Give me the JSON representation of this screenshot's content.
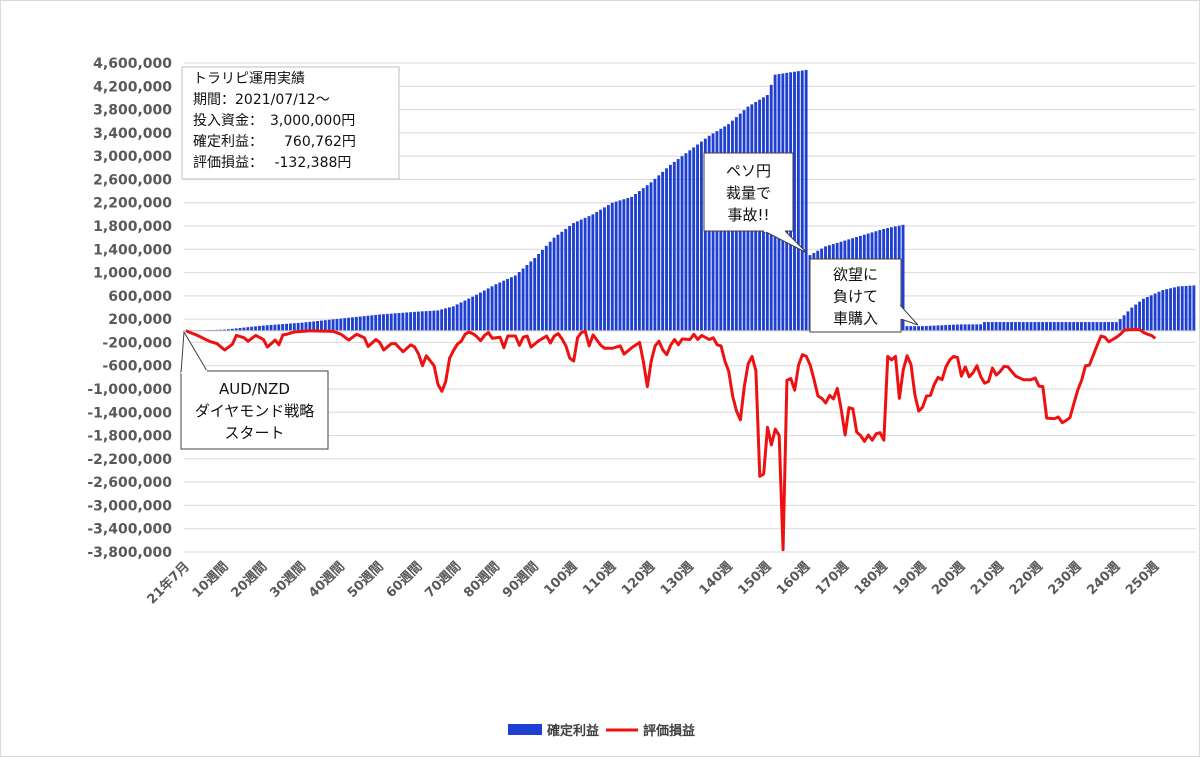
{
  "chart_data": {
    "type": "bar",
    "y_ticks": [
      "4,600,000",
      "4,200,000",
      "3,800,000",
      "3,400,000",
      "3,000,000",
      "2,600,000",
      "2,200,000",
      "1,800,000",
      "1,400,000",
      "1,000,000",
      "600,000",
      "200,000",
      "-200,000",
      "-600,000",
      "-1,000,000",
      "-1,400,000",
      "-1,800,000",
      "-2,200,000",
      "-2,600,000",
      "-3,000,000",
      "-3,400,000",
      "-3,800,000"
    ],
    "ylim": [
      -3800000,
      4600000
    ],
    "grid": true,
    "x_ticks": [
      "21年7月",
      "10週間",
      "20週間",
      "30週間",
      "40週間",
      "50週間",
      "60週間",
      "70週間",
      "80週間",
      "90週間",
      "100週",
      "110週",
      "120週",
      "130週",
      "140週",
      "150週",
      "160週",
      "170週",
      "180週",
      "190週",
      "200週",
      "210週",
      "220週",
      "230週",
      "240週",
      "250週"
    ],
    "x_count": 261,
    "legend": {
      "position": "bottom",
      "items": [
        {
          "name": "確定利益",
          "color": "#1f3fd1"
        },
        {
          "name": "評価損益",
          "color": "#ee1111"
        }
      ]
    },
    "series": [
      {
        "name": "確定利益",
        "type": "bar",
        "color": "#1f3fd1",
        "points": [
          [
            0,
            0
          ],
          [
            10,
            20000
          ],
          [
            20,
            90000
          ],
          [
            30,
            140000
          ],
          [
            40,
            210000
          ],
          [
            50,
            280000
          ],
          [
            60,
            330000
          ],
          [
            65,
            350000
          ],
          [
            69,
            420000
          ],
          [
            75,
            620000
          ],
          [
            80,
            800000
          ],
          [
            85,
            950000
          ],
          [
            90,
            1250000
          ],
          [
            95,
            1600000
          ],
          [
            100,
            1850000
          ],
          [
            105,
            2000000
          ],
          [
            110,
            2200000
          ],
          [
            115,
            2300000
          ],
          [
            120,
            2550000
          ],
          [
            125,
            2850000
          ],
          [
            130,
            3100000
          ],
          [
            135,
            3350000
          ],
          [
            140,
            3550000
          ],
          [
            145,
            3850000
          ],
          [
            150,
            4050000
          ],
          [
            152,
            4400000
          ],
          [
            160,
            4480000
          ],
          [
            161,
            1300000
          ],
          [
            165,
            1450000
          ],
          [
            170,
            1550000
          ],
          [
            175,
            1650000
          ],
          [
            180,
            1750000
          ],
          [
            185,
            1820000
          ],
          [
            186,
            80000
          ],
          [
            190,
            80000
          ],
          [
            200,
            110000
          ],
          [
            205,
            110000
          ],
          [
            206,
            150000
          ],
          [
            215,
            150000
          ],
          [
            225,
            150000
          ],
          [
            235,
            150000
          ],
          [
            240,
            150000
          ],
          [
            241,
            200000
          ],
          [
            244,
            400000
          ],
          [
            247,
            550000
          ],
          [
            252,
            700000
          ],
          [
            256,
            760762
          ],
          [
            260,
            780000
          ]
        ]
      },
      {
        "name": "評価損益",
        "type": "line",
        "color": "#ee1111",
        "points": [
          [
            0,
            0
          ],
          [
            3,
            -80000
          ],
          [
            6,
            -180000
          ],
          [
            8,
            -220000
          ],
          [
            10,
            -330000
          ],
          [
            12,
            -230000
          ],
          [
            13,
            -80000
          ],
          [
            15,
            -120000
          ],
          [
            16,
            -180000
          ],
          [
            18,
            -80000
          ],
          [
            20,
            -150000
          ],
          [
            21,
            -280000
          ],
          [
            23,
            -160000
          ],
          [
            24,
            -240000
          ],
          [
            25,
            -70000
          ],
          [
            26,
            -60000
          ],
          [
            28,
            -20000
          ],
          [
            32,
            0
          ],
          [
            38,
            -10000
          ],
          [
            40,
            -60000
          ],
          [
            42,
            -160000
          ],
          [
            44,
            -60000
          ],
          [
            46,
            -120000
          ],
          [
            47,
            -270000
          ],
          [
            49,
            -150000
          ],
          [
            50,
            -200000
          ],
          [
            51,
            -330000
          ],
          [
            53,
            -220000
          ],
          [
            54,
            -220000
          ],
          [
            56,
            -360000
          ],
          [
            58,
            -240000
          ],
          [
            59,
            -280000
          ],
          [
            60,
            -400000
          ],
          [
            61,
            -600000
          ],
          [
            62,
            -430000
          ],
          [
            64,
            -600000
          ],
          [
            65,
            -920000
          ],
          [
            66,
            -1040000
          ],
          [
            67,
            -870000
          ],
          [
            68,
            -470000
          ],
          [
            69,
            -340000
          ],
          [
            70,
            -230000
          ],
          [
            71,
            -180000
          ],
          [
            72,
            -60000
          ],
          [
            73,
            -20000
          ],
          [
            74,
            -50000
          ],
          [
            75,
            -100000
          ],
          [
            76,
            -170000
          ],
          [
            77,
            -80000
          ],
          [
            78,
            -30000
          ],
          [
            79,
            -130000
          ],
          [
            81,
            -110000
          ],
          [
            82,
            -290000
          ],
          [
            83,
            -90000
          ],
          [
            85,
            -90000
          ],
          [
            86,
            -250000
          ],
          [
            87,
            -110000
          ],
          [
            88,
            -90000
          ],
          [
            89,
            -280000
          ],
          [
            91,
            -170000
          ],
          [
            93,
            -90000
          ],
          [
            94,
            -210000
          ],
          [
            95,
            -90000
          ],
          [
            96,
            -50000
          ],
          [
            97,
            -140000
          ],
          [
            98,
            -260000
          ],
          [
            99,
            -470000
          ],
          [
            100,
            -520000
          ],
          [
            101,
            -120000
          ],
          [
            102,
            -30000
          ],
          [
            103,
            -10000
          ],
          [
            104,
            -260000
          ],
          [
            105,
            -70000
          ],
          [
            107,
            -250000
          ],
          [
            108,
            -300000
          ],
          [
            110,
            -300000
          ],
          [
            112,
            -260000
          ],
          [
            113,
            -400000
          ],
          [
            115,
            -290000
          ],
          [
            117,
            -200000
          ],
          [
            118,
            -540000
          ],
          [
            119,
            -960000
          ],
          [
            120,
            -520000
          ],
          [
            121,
            -260000
          ],
          [
            122,
            -180000
          ],
          [
            123,
            -330000
          ],
          [
            124,
            -410000
          ],
          [
            125,
            -250000
          ],
          [
            126,
            -150000
          ],
          [
            127,
            -240000
          ],
          [
            128,
            -140000
          ],
          [
            130,
            -150000
          ],
          [
            131,
            -60000
          ],
          [
            132,
            -150000
          ],
          [
            133,
            -80000
          ],
          [
            135,
            -150000
          ],
          [
            136,
            -120000
          ],
          [
            137,
            -240000
          ],
          [
            138,
            -260000
          ],
          [
            139,
            -520000
          ],
          [
            140,
            -700000
          ],
          [
            141,
            -1120000
          ],
          [
            142,
            -1380000
          ],
          [
            143,
            -1530000
          ],
          [
            144,
            -960000
          ],
          [
            145,
            -570000
          ],
          [
            146,
            -440000
          ],
          [
            147,
            -690000
          ],
          [
            148,
            -2500000
          ],
          [
            149,
            -2460000
          ],
          [
            150,
            -1660000
          ],
          [
            151,
            -1960000
          ],
          [
            152,
            -1690000
          ],
          [
            153,
            -1800000
          ],
          [
            154,
            -3760000
          ],
          [
            155,
            -850000
          ],
          [
            156,
            -820000
          ],
          [
            157,
            -1020000
          ],
          [
            158,
            -590000
          ],
          [
            159,
            -410000
          ],
          [
            160,
            -440000
          ],
          [
            161,
            -590000
          ],
          [
            162,
            -840000
          ],
          [
            163,
            -1120000
          ],
          [
            164,
            -1160000
          ],
          [
            165,
            -1240000
          ],
          [
            166,
            -1110000
          ],
          [
            167,
            -1170000
          ],
          [
            168,
            -990000
          ],
          [
            169,
            -1350000
          ],
          [
            170,
            -1790000
          ],
          [
            171,
            -1320000
          ],
          [
            172,
            -1340000
          ],
          [
            173,
            -1740000
          ],
          [
            174,
            -1800000
          ],
          [
            175,
            -1900000
          ],
          [
            176,
            -1790000
          ],
          [
            177,
            -1880000
          ],
          [
            178,
            -1770000
          ],
          [
            179,
            -1750000
          ],
          [
            180,
            -1880000
          ],
          [
            181,
            -440000
          ],
          [
            182,
            -500000
          ],
          [
            183,
            -440000
          ],
          [
            184,
            -1160000
          ],
          [
            185,
            -670000
          ],
          [
            186,
            -430000
          ],
          [
            187,
            -580000
          ],
          [
            188,
            -1100000
          ],
          [
            189,
            -1380000
          ],
          [
            190,
            -1310000
          ],
          [
            191,
            -1120000
          ],
          [
            192,
            -1110000
          ],
          [
            193,
            -920000
          ],
          [
            194,
            -800000
          ],
          [
            195,
            -840000
          ],
          [
            196,
            -620000
          ],
          [
            197,
            -500000
          ],
          [
            198,
            -440000
          ],
          [
            199,
            -460000
          ],
          [
            200,
            -780000
          ],
          [
            201,
            -620000
          ],
          [
            202,
            -790000
          ],
          [
            203,
            -720000
          ],
          [
            204,
            -600000
          ],
          [
            205,
            -790000
          ],
          [
            206,
            -900000
          ],
          [
            207,
            -870000
          ],
          [
            208,
            -640000
          ],
          [
            209,
            -760000
          ],
          [
            210,
            -700000
          ],
          [
            211,
            -610000
          ],
          [
            212,
            -620000
          ],
          [
            213,
            -700000
          ],
          [
            214,
            -780000
          ],
          [
            216,
            -840000
          ],
          [
            218,
            -840000
          ],
          [
            219,
            -810000
          ],
          [
            220,
            -950000
          ],
          [
            221,
            -960000
          ],
          [
            222,
            -1500000
          ],
          [
            224,
            -1510000
          ],
          [
            225,
            -1480000
          ],
          [
            226,
            -1580000
          ],
          [
            227,
            -1540000
          ],
          [
            228,
            -1490000
          ],
          [
            229,
            -1250000
          ],
          [
            230,
            -1020000
          ],
          [
            231,
            -850000
          ],
          [
            232,
            -600000
          ],
          [
            233,
            -590000
          ],
          [
            234,
            -420000
          ],
          [
            235,
            -250000
          ],
          [
            236,
            -90000
          ],
          [
            237,
            -110000
          ],
          [
            238,
            -190000
          ],
          [
            239,
            -150000
          ],
          [
            240,
            -110000
          ],
          [
            241,
            -60000
          ],
          [
            242,
            10000
          ],
          [
            244,
            20000
          ],
          [
            246,
            20000
          ],
          [
            247,
            -30000
          ],
          [
            248,
            -60000
          ],
          [
            249,
            -80000
          ],
          [
            250,
            -130000
          ]
        ]
      }
    ],
    "annotations": {
      "info_box": [
        "トラリピ運用実績",
        "期間：2021/07/12～",
        "投入資金：　3,000,000円",
        "確定利益：　　760,762円",
        "評価損益：　 -132,388円"
      ],
      "callout_start": [
        "AUD/NZD",
        "ダイヤモンド戦略",
        "スタート"
      ],
      "callout_peso": [
        "ペソ円",
        "裁量で",
        "事故!!"
      ],
      "callout_car": [
        "欲望に",
        "負けて",
        "車購入"
      ]
    }
  }
}
